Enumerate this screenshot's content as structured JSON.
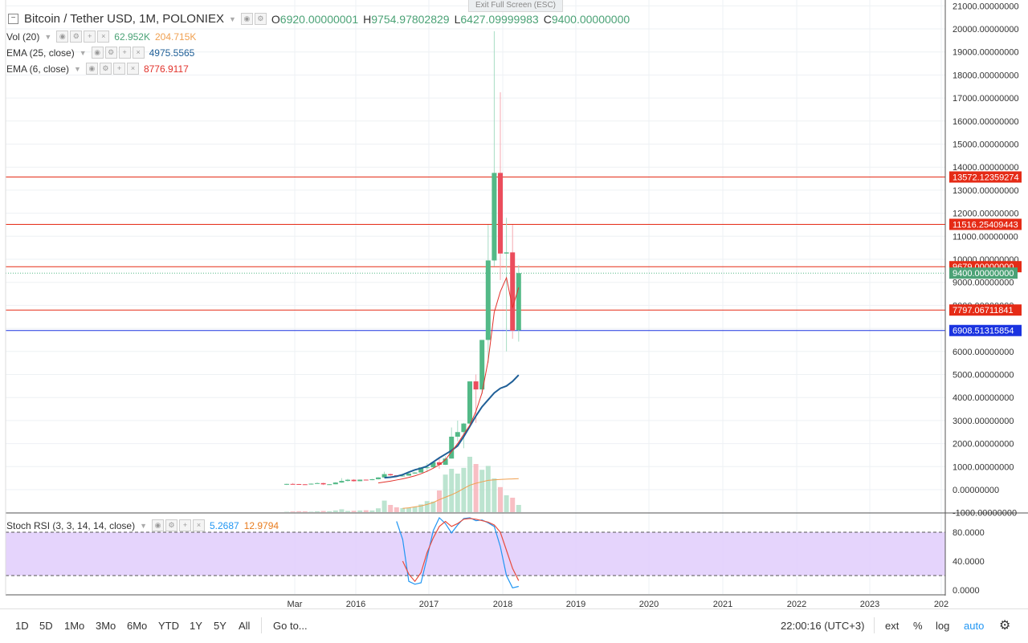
{
  "header": {
    "symbol": "Bitcoin / Tether USD, 1M, POLONIEX",
    "o_label": "O",
    "o_value": "6920.00000001",
    "h_label": "H",
    "h_value": "9754.97802829",
    "l_label": "L",
    "l_value": "6427.09999983",
    "c_label": "C",
    "c_value": "9400.00000000"
  },
  "exit_fullscreen": "Exit Full Screen (ESC)",
  "indicators": {
    "vol": {
      "name": "Vol (20)",
      "v1": "62.952K",
      "v2": "204.715K"
    },
    "ema25": {
      "name": "EMA (25, close)",
      "value": "4975.5565"
    },
    "ema6": {
      "name": "EMA (6, close)",
      "value": "8776.9117"
    },
    "stoch": {
      "name": "Stoch RSI (3, 3, 14, 14, close)",
      "k": "5.2687",
      "d": "12.9794"
    }
  },
  "colors": {
    "up": "#53b987",
    "down": "#eb4d5c",
    "ema25": "#1f5f97",
    "ema6": "#e2322b",
    "vol_ma": "#f0a050",
    "stoch_k": "#2196f3",
    "stoch_d": "#e84c3d",
    "stoch_band": "#e1ccfc",
    "hline": "#e52b16",
    "support": "#1a237e"
  },
  "chart_data": {
    "type": "candlestick",
    "price_axis": {
      "range": [
        -1000,
        21000
      ],
      "ticks": [
        "21000.00000000",
        "20000.00000000",
        "19000.00000000",
        "18000.00000000",
        "17000.00000000",
        "16000.00000000",
        "15000.00000000",
        "14000.00000000",
        "13000.00000000",
        "12000.00000000",
        "11000.00000000",
        "10000.00000000",
        "9000.00000000",
        "8000.00000000",
        "7000.00000000",
        "6000.00000000",
        "5000.00000000",
        "4000.00000000",
        "3000.00000000",
        "2000.00000000",
        "1000.00000000",
        "0.00000000",
        "-1000.00000000"
      ]
    },
    "time_axis": {
      "ticks": [
        "Mar",
        "2016",
        "2017",
        "2018",
        "2019",
        "2020",
        "2021",
        "2022",
        "2023",
        "202"
      ]
    },
    "horizontal_lines": [
      {
        "label": "13572.12359274",
        "price": 13572.12,
        "color": "#e52b16"
      },
      {
        "label": "11516.25409443",
        "price": 11516.25,
        "color": "#e52b16"
      },
      {
        "label": "9679.00000000",
        "price": 9679,
        "color": "#e52b16"
      },
      {
        "label": "7797.06711841",
        "price": 7797.07,
        "color": "#e52b16"
      },
      {
        "label": "6908.51315854",
        "price": 6908.51,
        "color": "#1a33e0"
      }
    ],
    "last_price": {
      "label": "9400.00000000",
      "price": 9400
    },
    "candles": [
      {
        "t": "2015-02",
        "o": 240,
        "h": 260,
        "l": 200,
        "c": 250
      },
      {
        "t": "2015-03",
        "o": 250,
        "h": 290,
        "l": 240,
        "c": 245
      },
      {
        "t": "2015-04",
        "o": 245,
        "h": 250,
        "l": 215,
        "c": 235
      },
      {
        "t": "2015-05",
        "o": 235,
        "h": 245,
        "l": 225,
        "c": 230
      },
      {
        "t": "2015-06",
        "o": 230,
        "h": 270,
        "l": 220,
        "c": 260
      },
      {
        "t": "2015-07",
        "o": 260,
        "h": 320,
        "l": 255,
        "c": 285
      },
      {
        "t": "2015-08",
        "o": 285,
        "h": 300,
        "l": 200,
        "c": 230
      },
      {
        "t": "2015-09",
        "o": 230,
        "h": 245,
        "l": 225,
        "c": 236
      },
      {
        "t": "2015-10",
        "o": 236,
        "h": 330,
        "l": 235,
        "c": 310
      },
      {
        "t": "2015-11",
        "o": 310,
        "h": 500,
        "l": 300,
        "c": 380
      },
      {
        "t": "2015-12",
        "o": 380,
        "h": 470,
        "l": 350,
        "c": 430
      },
      {
        "t": "2016-01",
        "o": 430,
        "h": 460,
        "l": 350,
        "c": 370
      },
      {
        "t": "2016-02",
        "o": 370,
        "h": 440,
        "l": 365,
        "c": 435
      },
      {
        "t": "2016-03",
        "o": 435,
        "h": 440,
        "l": 400,
        "c": 415
      },
      {
        "t": "2016-04",
        "o": 415,
        "h": 470,
        "l": 410,
        "c": 455
      },
      {
        "t": "2016-05",
        "o": 455,
        "h": 550,
        "l": 440,
        "c": 530
      },
      {
        "t": "2016-06",
        "o": 530,
        "h": 780,
        "l": 520,
        "c": 675
      },
      {
        "t": "2016-07",
        "o": 675,
        "h": 700,
        "l": 600,
        "c": 625
      },
      {
        "t": "2016-08",
        "o": 625,
        "h": 630,
        "l": 560,
        "c": 575
      },
      {
        "t": "2016-09",
        "o": 575,
        "h": 620,
        "l": 570,
        "c": 610
      },
      {
        "t": "2016-10",
        "o": 610,
        "h": 720,
        "l": 600,
        "c": 700
      },
      {
        "t": "2016-11",
        "o": 700,
        "h": 760,
        "l": 690,
        "c": 745
      },
      {
        "t": "2016-12",
        "o": 745,
        "h": 980,
        "l": 740,
        "c": 965
      },
      {
        "t": "2017-01",
        "o": 965,
        "h": 1150,
        "l": 760,
        "c": 970
      },
      {
        "t": "2017-02",
        "o": 970,
        "h": 1200,
        "l": 920,
        "c": 1190
      },
      {
        "t": "2017-03",
        "o": 1190,
        "h": 1350,
        "l": 900,
        "c": 1080
      },
      {
        "t": "2017-04",
        "o": 1080,
        "h": 1450,
        "l": 1070,
        "c": 1350
      },
      {
        "t": "2017-05",
        "o": 1350,
        "h": 2700,
        "l": 1350,
        "c": 2300
      },
      {
        "t": "2017-06",
        "o": 2300,
        "h": 3000,
        "l": 2100,
        "c": 2500
      },
      {
        "t": "2017-07",
        "o": 2500,
        "h": 2900,
        "l": 1800,
        "c": 2870
      },
      {
        "t": "2017-08",
        "o": 2870,
        "h": 4700,
        "l": 2700,
        "c": 4700
      },
      {
        "t": "2017-09",
        "o": 4700,
        "h": 5000,
        "l": 2900,
        "c": 4350
      },
      {
        "t": "2017-10",
        "o": 4350,
        "h": 6500,
        "l": 4150,
        "c": 6500
      },
      {
        "t": "2017-11",
        "o": 6500,
        "h": 11500,
        "l": 5500,
        "c": 9950
      },
      {
        "t": "2017-12",
        "o": 9950,
        "h": 19900,
        "l": 9700,
        "c": 13750
      },
      {
        "t": "2018-01",
        "o": 13750,
        "h": 17250,
        "l": 9100,
        "c": 10250
      },
      {
        "t": "2018-02",
        "o": 10250,
        "h": 11800,
        "l": 6000,
        "c": 10300
      },
      {
        "t": "2018-03",
        "o": 10300,
        "h": 11500,
        "l": 6550,
        "c": 6900
      },
      {
        "t": "2018-04",
        "o": 6920,
        "h": 9755,
        "l": 6427,
        "c": 9400
      }
    ],
    "ema25": [
      520,
      540,
      580,
      650,
      760,
      860,
      930,
      1020,
      1200,
      1380,
      1540,
      1700,
      1900,
      2300,
      2750,
      3200,
      3600,
      3900,
      4200,
      4400,
      4500,
      4700,
      4975
    ],
    "ema6": [
      290,
      330,
      370,
      420,
      470,
      530,
      600,
      690,
      800,
      930,
      1080,
      1300,
      1650,
      2000,
      2400,
      2800,
      3400,
      4200,
      5600,
      7700,
      8600,
      9200,
      7900,
      8777
    ],
    "volume_pane": {
      "range": [
        0,
        150000
      ],
      "values": [
        800,
        1500,
        2000,
        1800,
        1000,
        1800,
        2500,
        2000,
        3600,
        6000,
        2500,
        2800,
        3500,
        4000,
        3500,
        8000,
        24000,
        15000,
        10000,
        8500,
        9000,
        11000,
        16000,
        23000,
        22000,
        45000,
        78000,
        90000,
        80000,
        92000,
        115000,
        100000,
        88000,
        96000,
        70000,
        52000,
        35000,
        30000,
        15000
      ],
      "ma": [
        8000,
        9000,
        11000,
        13000,
        16000,
        20000,
        26000,
        31000,
        36000,
        42000,
        49000,
        56000,
        60000,
        63000,
        66000,
        67000,
        68000,
        68500,
        69000,
        69500
      ]
    },
    "stoch_rsi": {
      "range": [
        0,
        100
      ],
      "ticks": [
        "80.0000",
        "40.0000",
        "0.0000"
      ],
      "bands": [
        80,
        20
      ],
      "k": [
        95,
        70,
        12,
        8,
        10,
        45,
        82,
        100,
        92,
        79,
        90,
        99,
        100,
        96,
        97,
        93,
        88,
        60,
        20,
        3,
        5
      ],
      "d": [
        40,
        22,
        12,
        24,
        52,
        72,
        88,
        95,
        88,
        92,
        98,
        99,
        98,
        96,
        94,
        90,
        80,
        55,
        30,
        13
      ]
    }
  },
  "toolbar": {
    "ranges": [
      "1D",
      "5D",
      "1Mo",
      "3Mo",
      "6Mo",
      "YTD",
      "1Y",
      "5Y",
      "All"
    ],
    "goto": "Go to...",
    "time": "22:00:16 (UTC+3)",
    "ext": "ext",
    "percent": "%",
    "log": "log",
    "auto": "auto"
  }
}
